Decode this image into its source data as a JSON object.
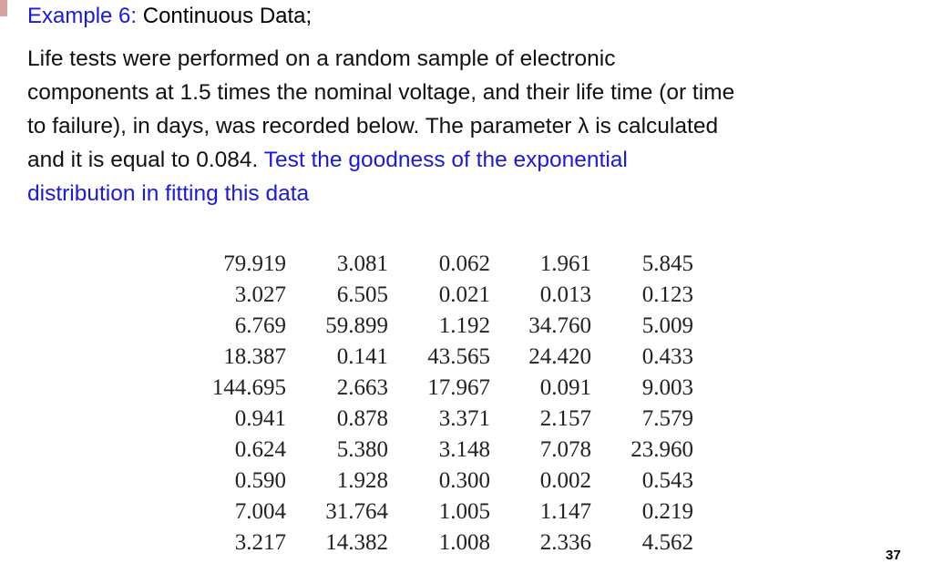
{
  "header": {
    "title_label": "Example 6:",
    "title_text": "Continuous Data;"
  },
  "body": {
    "lines": [
      "Life tests were performed on a random sample of electronic",
      "components at 1.5 times the nominal voltage, and their life time (or time",
      "to failure), in days, was recorded below. The parameter λ is calculated",
      "and it is equal to 0.084."
    ],
    "highlight": [
      "Test the goodness of the exponential",
      "distribution in fitting this data"
    ]
  },
  "table": {
    "rows": [
      [
        "79.919",
        "3.081",
        "0.062",
        "1.961",
        "5.845"
      ],
      [
        "3.027",
        "6.505",
        "0.021",
        "0.013",
        "0.123"
      ],
      [
        "6.769",
        "59.899",
        "1.192",
        "34.760",
        "5.009"
      ],
      [
        "18.387",
        "0.141",
        "43.565",
        "24.420",
        "0.433"
      ],
      [
        "144.695",
        "2.663",
        "17.967",
        "0.091",
        "9.003"
      ],
      [
        "0.941",
        "0.878",
        "3.371",
        "2.157",
        "7.579"
      ],
      [
        "0.624",
        "5.380",
        "3.148",
        "7.078",
        "23.960"
      ],
      [
        "0.590",
        "1.928",
        "0.300",
        "0.002",
        "0.543"
      ],
      [
        "7.004",
        "31.764",
        "1.005",
        "1.147",
        "0.219"
      ],
      [
        "3.217",
        "14.382",
        "1.008",
        "2.336",
        "4.562"
      ]
    ]
  },
  "footer": {
    "page_number": "37"
  }
}
